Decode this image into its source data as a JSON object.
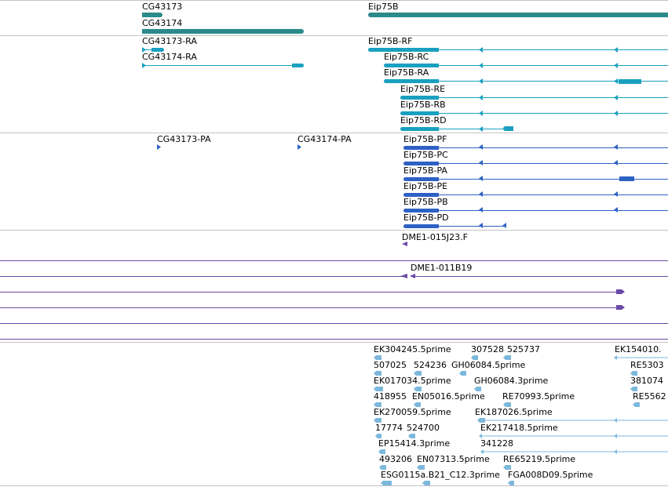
{
  "colors": {
    "gene": "#2b8a8a",
    "transcript": "#1aa0c0",
    "protein": "#2d62c4",
    "clone": "#6a4aa8",
    "est": "#7cb8dc",
    "separator": "#c4c4c4"
  },
  "genes": {
    "cg43173": "CG43173",
    "cg43174": "CG43174",
    "eip75b": "Eip75B"
  },
  "transcripts": {
    "cg43173_ra": "CG43173-RA",
    "cg43174_ra": "CG43174-RA",
    "rf": "Eip75B-RF",
    "rc": "Eip75B-RC",
    "ra": "Eip75B-RA",
    "re": "Eip75B-RE",
    "rb": "Eip75B-RB",
    "rd": "Eip75B-RD"
  },
  "proteins": {
    "cg43173_pa": "CG43173-PA",
    "cg43174_pa": "CG43174-PA",
    "pf": "Eip75B-PF",
    "pc": "Eip75B-PC",
    "pa": "Eip75B-PA",
    "pe": "Eip75B-PE",
    "pb": "Eip75B-PB",
    "pd": "Eip75B-PD"
  },
  "clones": {
    "c1": "DME1-015J23.F",
    "c2": "DME1-011B19"
  },
  "ests": {
    "e1": "EK304245.5prime",
    "e2": "307528",
    "e3": "525737",
    "e4": "EK154010.",
    "e5": "507025",
    "e6": "524236",
    "e7": "GH06084.5prime",
    "e8": "RE5303",
    "e9": "EK017034.5prime",
    "e10": "GH06084.3prime",
    "e11": "381074",
    "e12": "418955",
    "e13": "EN05016.5prime",
    "e14": "RE70993.5prime",
    "e15": "RE5562",
    "e16": "EK270059.5prime",
    "e17": "EK187026.5prime",
    "e18": "17774",
    "e19": "524700",
    "e20": "EK217418.5prime",
    "e21": "EP15414.3prime",
    "e22": "341228",
    "e23": "493206",
    "e24": "EN07313.5prime",
    "e25": "RE65219.5prime",
    "e26": "ESG0115a.B21_C12.3prime",
    "e27": "FGA008D09.5prime"
  }
}
